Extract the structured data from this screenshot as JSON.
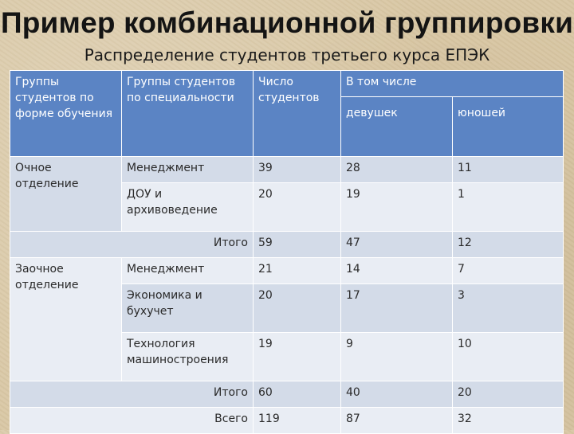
{
  "title": "Пример комбинационной группировки",
  "subtitle": "Распределение студентов третьего курса ЕПЭК",
  "headers": {
    "col1": "Группы студентов по форме обучения",
    "col2": "Группы студентов по специальности",
    "col3": "Число студентов",
    "col4": "В том числе",
    "col4a": "девушек",
    "col4b": "юношей"
  },
  "rows": {
    "ochnoe": {
      "label": "Очное отделение",
      "items": [
        {
          "spec": "Менеджмент",
          "count": "39",
          "girls": "28",
          "boys": "11"
        },
        {
          "spec": "ДОУ и архивоведение",
          "count": "20",
          "girls": "19",
          "boys": "1"
        }
      ],
      "total": {
        "label": "Итого",
        "count": "59",
        "girls": "47",
        "boys": "12"
      }
    },
    "zaochnoe": {
      "label": "Заочное отделение",
      "items": [
        {
          "spec": "Менеджмент",
          "count": "21",
          "girls": "14",
          "boys": "7"
        },
        {
          "spec": "Экономика и бухучет",
          "count": "20",
          "girls": "17",
          "boys": "3"
        },
        {
          "spec": "Технология машиностроения",
          "count": "19",
          "girls": "9",
          "boys": "10"
        }
      ],
      "total": {
        "label": "Итого",
        "count": "60",
        "girls": "40",
        "boys": "20"
      }
    },
    "grand": {
      "label": "Всего",
      "count": "119",
      "girls": "87",
      "boys": "32"
    }
  }
}
